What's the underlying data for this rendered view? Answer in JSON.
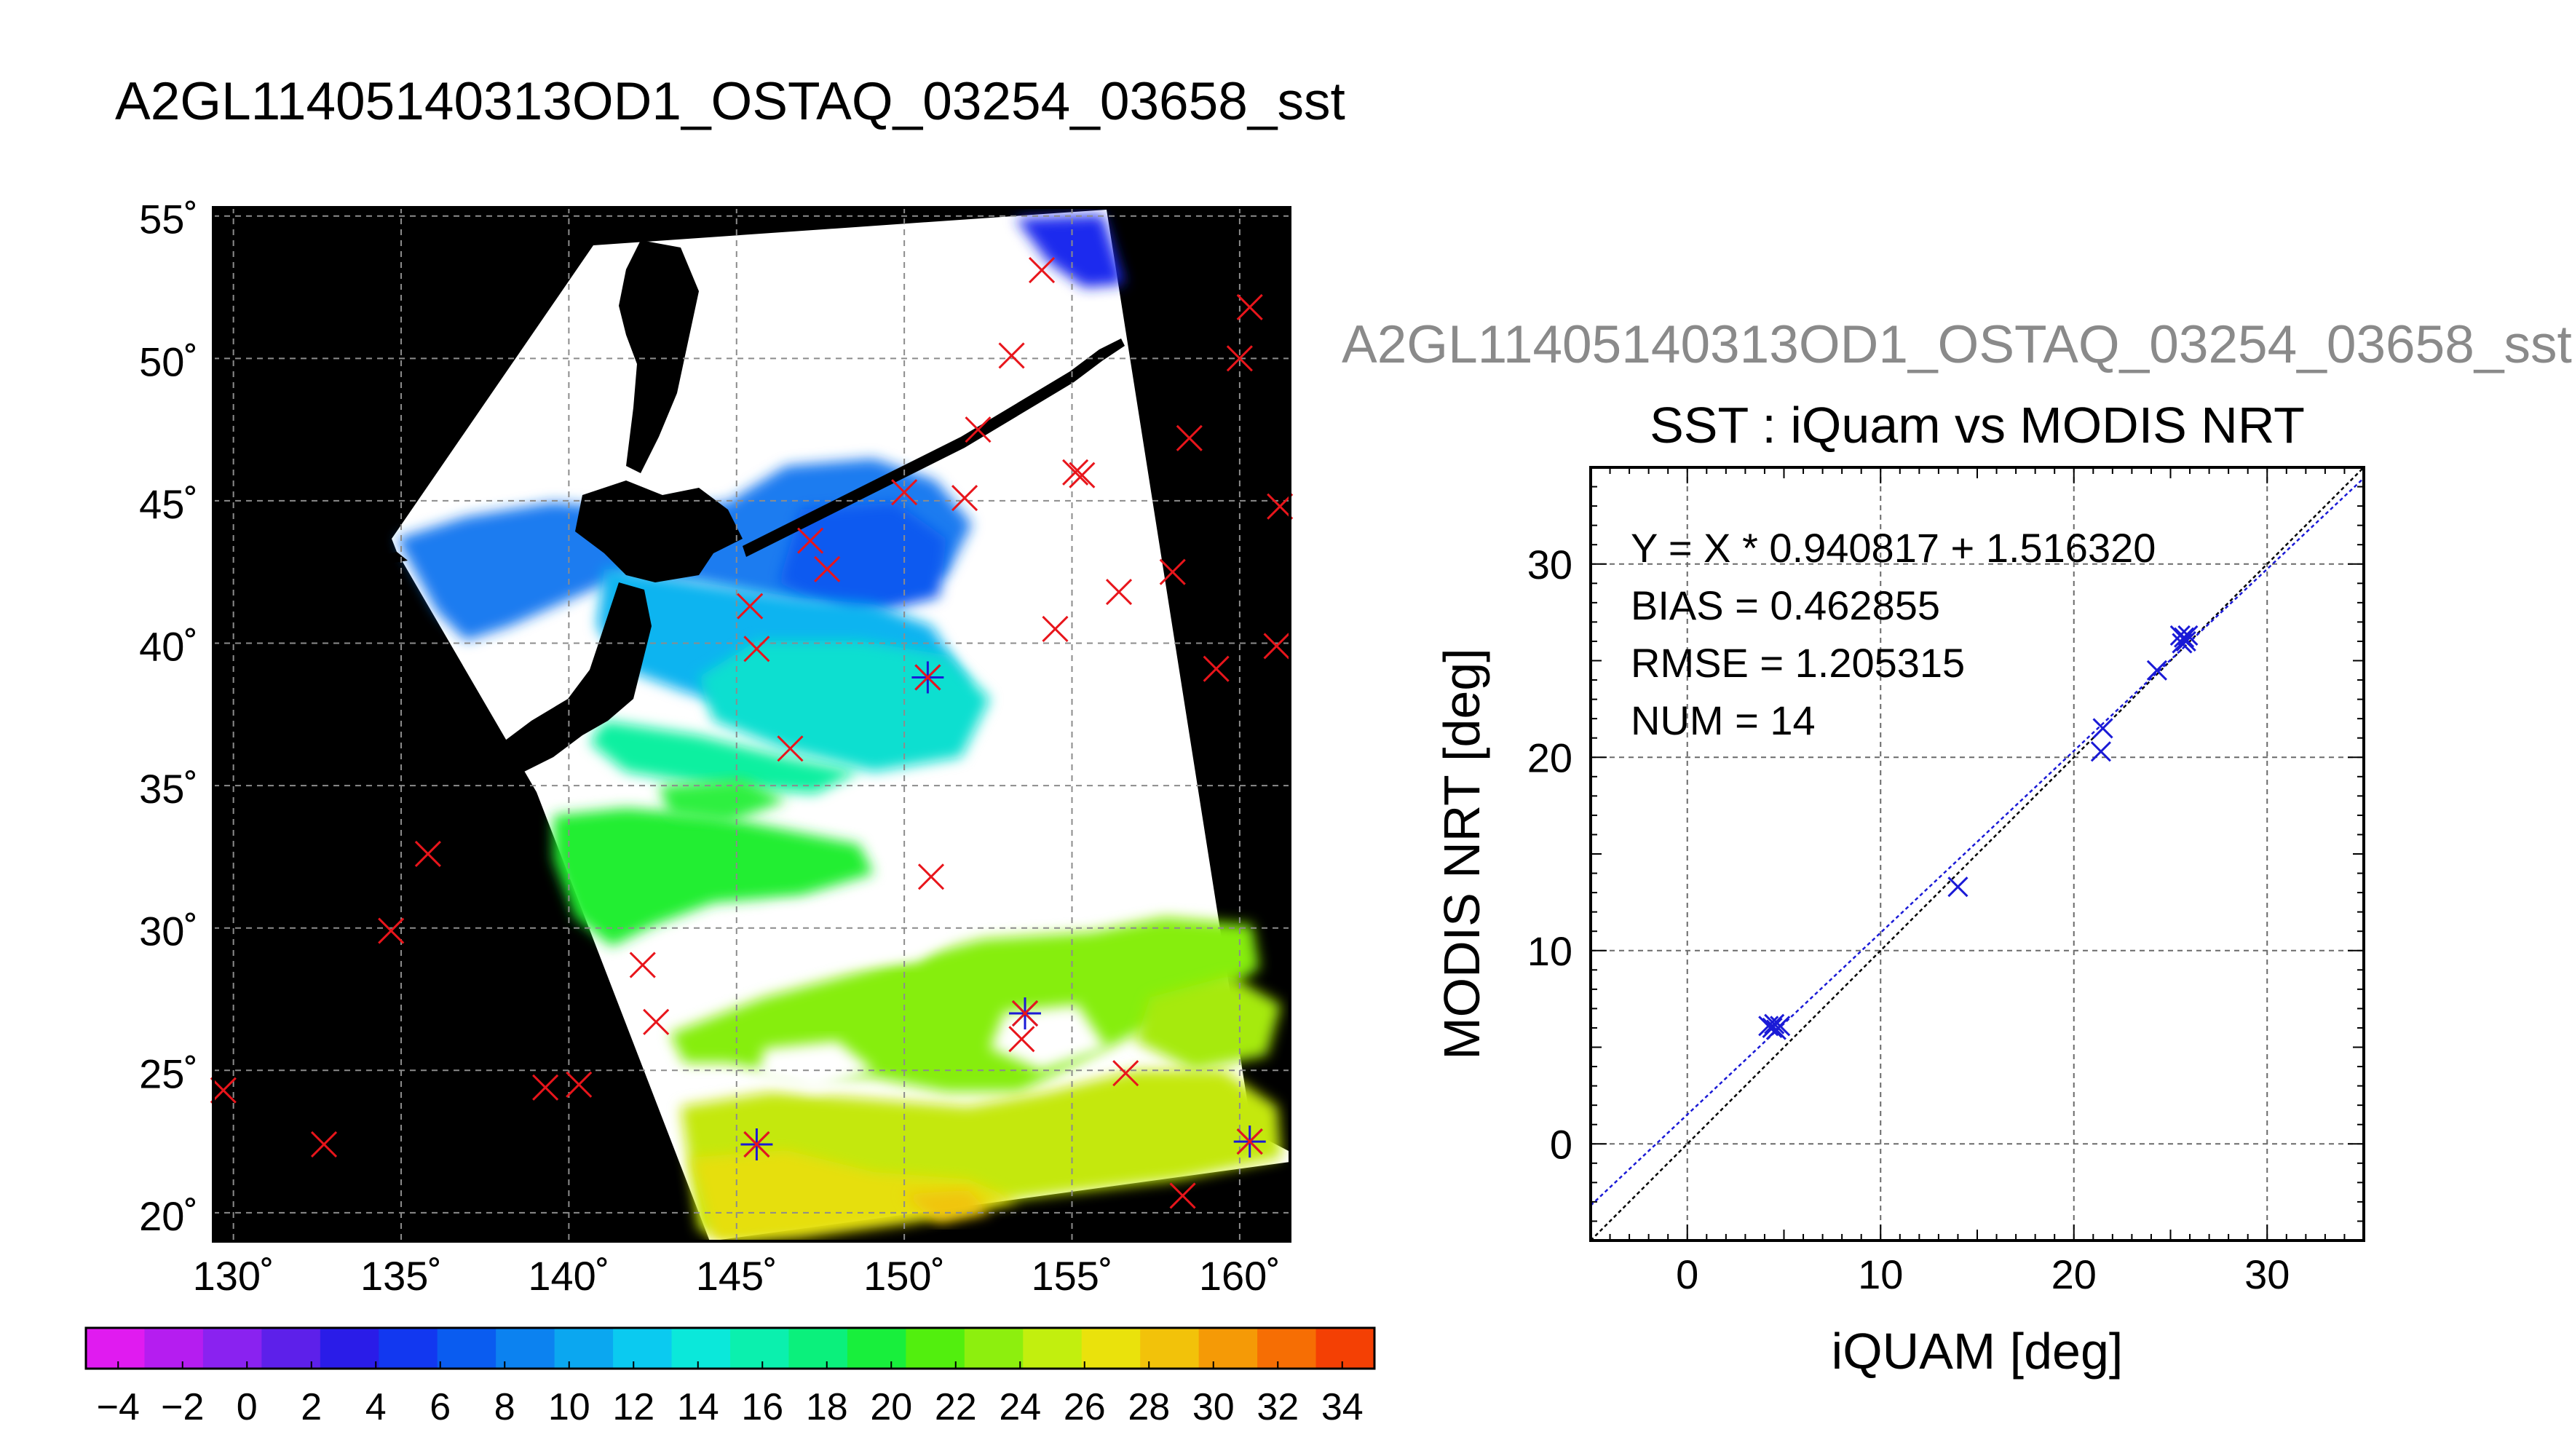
{
  "figure": {
    "main_title": "A2GL11405140313OD1_OSTAQ_03254_03658_sst",
    "faded_title": "A2GL11405140313OD1_OSTAQ_03254_03658_sst"
  },
  "map_panel": {
    "lat_labels": [
      "55˚",
      "50˚",
      "45˚",
      "40˚",
      "35˚",
      "30˚",
      "25˚",
      "20˚"
    ],
    "lat_values": [
      55,
      50,
      45,
      40,
      35,
      30,
      25,
      20
    ],
    "lon_labels": [
      "130˚",
      "135˚",
      "140˚",
      "145˚",
      "150˚",
      "155˚",
      "160˚"
    ],
    "lon_values": [
      130,
      135,
      140,
      145,
      150,
      155,
      160
    ],
    "lon_range": [
      129.4,
      161.5
    ],
    "lat_range": [
      19.0,
      55.3
    ],
    "grid": true,
    "colorbar": {
      "min": -5,
      "max": 35,
      "labels": [
        "−4",
        "−2",
        "0",
        "2",
        "4",
        "6",
        "8",
        "10",
        "12",
        "14",
        "16",
        "18",
        "20",
        "22",
        "24",
        "26",
        "28",
        "30",
        "32",
        "34"
      ],
      "label_values": [
        -4,
        -2,
        0,
        2,
        4,
        6,
        8,
        10,
        12,
        14,
        16,
        18,
        20,
        22,
        24,
        26,
        28,
        30,
        32,
        34
      ],
      "colors": [
        "#e01bf0",
        "#b51df0",
        "#8a22f0",
        "#5d20ea",
        "#2a1ce8",
        "#1238f0",
        "#0a5cf0",
        "#0c82f0",
        "#0ba7f0",
        "#0bcaf0",
        "#0be8da",
        "#0bf0ae",
        "#0bf07c",
        "#18ef3c",
        "#52ef0e",
        "#8def0e",
        "#c2ef0e",
        "#eae20c",
        "#f2c20a",
        "#f59a06",
        "#f66e04",
        "#f44004"
      ]
    },
    "buoys": [
      {
        "lon": 129.7,
        "lat": 24.3,
        "kind": "x"
      },
      {
        "lon": 132.7,
        "lat": 22.4,
        "kind": "x"
      },
      {
        "lon": 134.7,
        "lat": 29.9,
        "kind": "x"
      },
      {
        "lon": 135.8,
        "lat": 32.6,
        "kind": "x"
      },
      {
        "lon": 139.3,
        "lat": 24.4,
        "kind": "x"
      },
      {
        "lon": 140.3,
        "lat": 24.5,
        "kind": "x"
      },
      {
        "lon": 142.2,
        "lat": 28.7,
        "kind": "x"
      },
      {
        "lon": 142.6,
        "lat": 26.7,
        "kind": "x"
      },
      {
        "lon": 145.6,
        "lat": 22.4,
        "kind": "match"
      },
      {
        "lon": 146.6,
        "lat": 36.3,
        "kind": "x"
      },
      {
        "lon": 145.6,
        "lat": 39.8,
        "kind": "x"
      },
      {
        "lon": 145.4,
        "lat": 41.3,
        "kind": "x"
      },
      {
        "lon": 147.7,
        "lat": 42.6,
        "kind": "x"
      },
      {
        "lon": 147.2,
        "lat": 43.6,
        "kind": "x"
      },
      {
        "lon": 150.0,
        "lat": 45.3,
        "kind": "x"
      },
      {
        "lon": 150.8,
        "lat": 31.8,
        "kind": "x"
      },
      {
        "lon": 150.7,
        "lat": 38.8,
        "kind": "match"
      },
      {
        "lon": 151.8,
        "lat": 45.1,
        "kind": "x"
      },
      {
        "lon": 152.2,
        "lat": 47.5,
        "kind": "x"
      },
      {
        "lon": 153.2,
        "lat": 50.1,
        "kind": "x"
      },
      {
        "lon": 154.1,
        "lat": 53.1,
        "kind": "x"
      },
      {
        "lon": 153.5,
        "lat": 26.1,
        "kind": "x"
      },
      {
        "lon": 153.6,
        "lat": 27.0,
        "kind": "match"
      },
      {
        "lon": 154.5,
        "lat": 40.5,
        "kind": "x"
      },
      {
        "lon": 155.1,
        "lat": 46.0,
        "kind": "x"
      },
      {
        "lon": 155.3,
        "lat": 45.9,
        "kind": "x"
      },
      {
        "lon": 156.4,
        "lat": 41.8,
        "kind": "x"
      },
      {
        "lon": 156.6,
        "lat": 24.9,
        "kind": "x"
      },
      {
        "lon": 158.0,
        "lat": 42.5,
        "kind": "x"
      },
      {
        "lon": 158.5,
        "lat": 47.2,
        "kind": "x"
      },
      {
        "lon": 158.3,
        "lat": 20.6,
        "kind": "x"
      },
      {
        "lon": 159.3,
        "lat": 39.1,
        "kind": "x"
      },
      {
        "lon": 160.0,
        "lat": 50.0,
        "kind": "x"
      },
      {
        "lon": 160.3,
        "lat": 51.8,
        "kind": "x"
      },
      {
        "lon": 160.3,
        "lat": 22.5,
        "kind": "match"
      },
      {
        "lon": 161.1,
        "lat": 39.9,
        "kind": "x"
      },
      {
        "lon": 161.2,
        "lat": 44.8,
        "kind": "x"
      }
    ]
  },
  "chart_data": {
    "type": "scatter",
    "title": "SST : iQuam vs MODIS NRT",
    "xlabel": "iQUAM [deg]",
    "ylabel": "MODIS NRT [deg]",
    "xlim": [
      -5,
      35
    ],
    "ylim": [
      -5,
      35
    ],
    "xticks": [
      0,
      10,
      20,
      30
    ],
    "yticks": [
      0,
      10,
      20,
      30
    ],
    "grid": true,
    "stats": [
      "Y = X * 0.940817 + 1.516320",
      "BIAS = 0.462855",
      "RMSE = 1.205315",
      "NUM = 14"
    ],
    "fit": {
      "slope": 0.940817,
      "intercept": 1.51632
    },
    "series": [
      {
        "marker": "x",
        "color": "#1a1ad6",
        "x": [
          4.2,
          4.4,
          4.5,
          4.6,
          4.8,
          14.0,
          21.4,
          21.5,
          24.3,
          25.5,
          25.6,
          25.7,
          25.8,
          25.9
        ],
        "y": [
          6.1,
          6.0,
          6.2,
          5.9,
          6.1,
          13.3,
          20.3,
          21.5,
          24.5,
          26.3,
          25.9,
          26.2,
          26.0,
          26.3
        ]
      }
    ]
  }
}
